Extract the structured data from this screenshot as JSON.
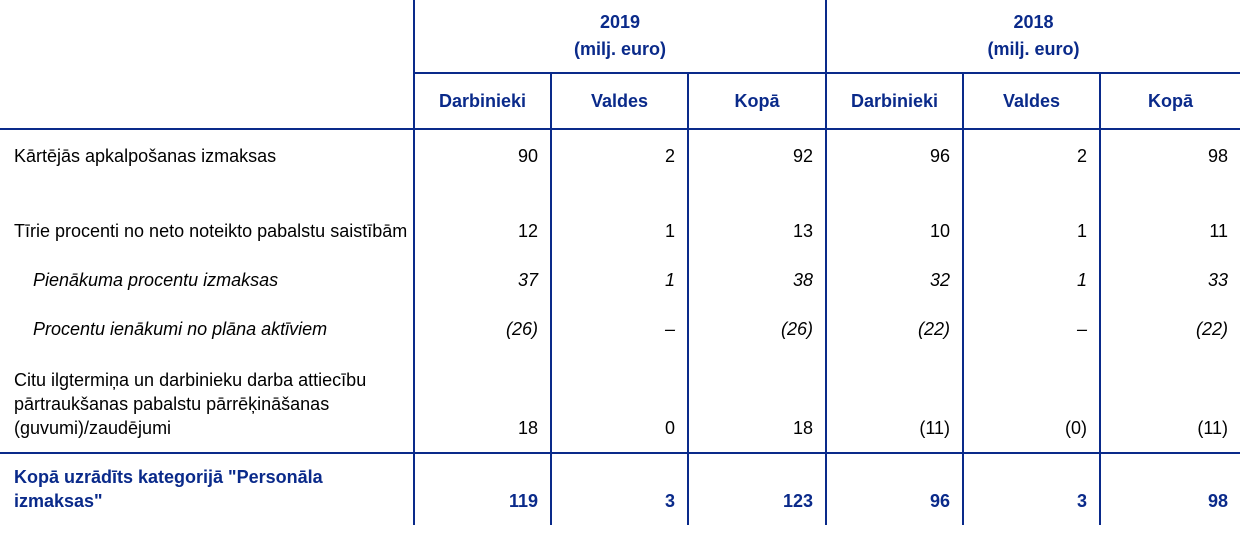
{
  "header": {
    "groups": [
      {
        "year": "2019",
        "unit": "(milj. euro)"
      },
      {
        "year": "2018",
        "unit": "(milj. euro)"
      }
    ],
    "subcols": [
      "Darbinieki",
      "Valdes",
      "Kopā",
      "Darbinieki",
      "Valdes",
      "Kopā"
    ]
  },
  "rows": [
    {
      "label": "Kārtējās apkalpošanas izmaksas",
      "values": [
        "90",
        "2",
        "92",
        "96",
        "2",
        "98"
      ]
    },
    {
      "label": "Tīrie procenti no neto noteikto pabalstu saistībām",
      "values": [
        "12",
        "1",
        "13",
        "10",
        "1",
        "11"
      ]
    },
    {
      "label": "Pienākuma procentu izmaksas",
      "values": [
        "37",
        "1",
        "38",
        "32",
        "1",
        "33"
      ]
    },
    {
      "label": "Procentu ienākumi no plāna aktīviem",
      "values": [
        "(26)",
        "–",
        "(26)",
        "(22)",
        "–",
        "(22)"
      ]
    },
    {
      "label": "Citu ilgtermiņa un darbinieku darba attiecību pārtraukšanas pabalstu pārrēķināšanas (guvumi)/zaudējumi",
      "values": [
        "18",
        "0",
        "18",
        "(11)",
        "(0)",
        "(11)"
      ]
    }
  ],
  "total": {
    "label": "Kopā uzrādīts kategorijā \"Personāla izmaksas\"",
    "values": [
      "119",
      "3",
      "123",
      "96",
      "3",
      "98"
    ]
  },
  "colors": {
    "accent": "#0a2a8a"
  }
}
